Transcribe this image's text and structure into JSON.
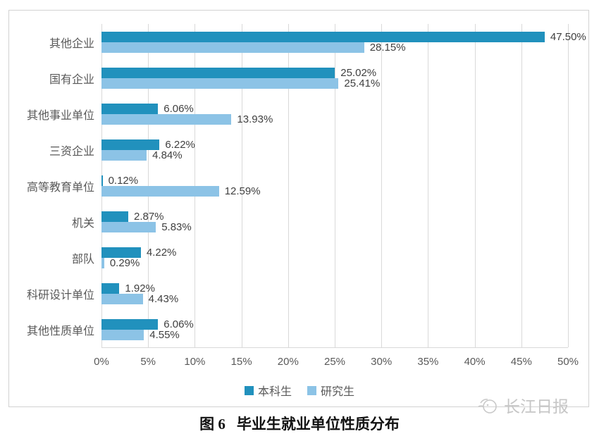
{
  "chart_data": {
    "type": "bar",
    "orientation": "horizontal",
    "title": "",
    "categories": [
      "其他企业",
      "国有企业",
      "其他事业单位",
      "三资企业",
      "高等教育单位",
      "机关",
      "部队",
      "科研设计单位",
      "其他性质单位"
    ],
    "series": [
      {
        "name": "本科生",
        "color": "#2191bd",
        "values": [
          47.5,
          25.02,
          6.06,
          6.22,
          0.12,
          2.87,
          4.22,
          1.92,
          6.06
        ]
      },
      {
        "name": "研究生",
        "color": "#8cc3e6",
        "values": [
          28.15,
          25.41,
          13.93,
          4.84,
          12.59,
          5.83,
          0.29,
          4.43,
          4.55
        ]
      }
    ],
    "value_labels": [
      [
        "47.50%",
        "25.02%",
        "6.06%",
        "6.22%",
        "0.12%",
        "2.87%",
        "4.22%",
        "1.92%",
        "6.06%"
      ],
      [
        "28.15%",
        "25.41%",
        "13.93%",
        "4.84%",
        "12.59%",
        "5.83%",
        "0.29%",
        "4.43%",
        "4.55%"
      ]
    ],
    "xlim": [
      0,
      50
    ],
    "x_tick_step": 5,
    "x_ticks": [
      "0%",
      "5%",
      "10%",
      "15%",
      "20%",
      "25%",
      "30%",
      "35%",
      "40%",
      "45%",
      "50%"
    ],
    "xlabel": "",
    "ylabel": "",
    "grid": true,
    "legend_position": "bottom"
  },
  "caption": {
    "figure_label": "图 6",
    "title_text": "毕业生就业单位性质分布"
  },
  "watermark": {
    "text": "长江日报"
  },
  "colors": {
    "undergrad_bar": "#2191bd",
    "grad_bar": "#8cc3e6",
    "gridline": "#d9d9d9",
    "chart_border": "#d2d2d2",
    "axis_text": "#595959",
    "value_text": "#3f3f3f",
    "watermark_text": "#c6c6c6"
  }
}
